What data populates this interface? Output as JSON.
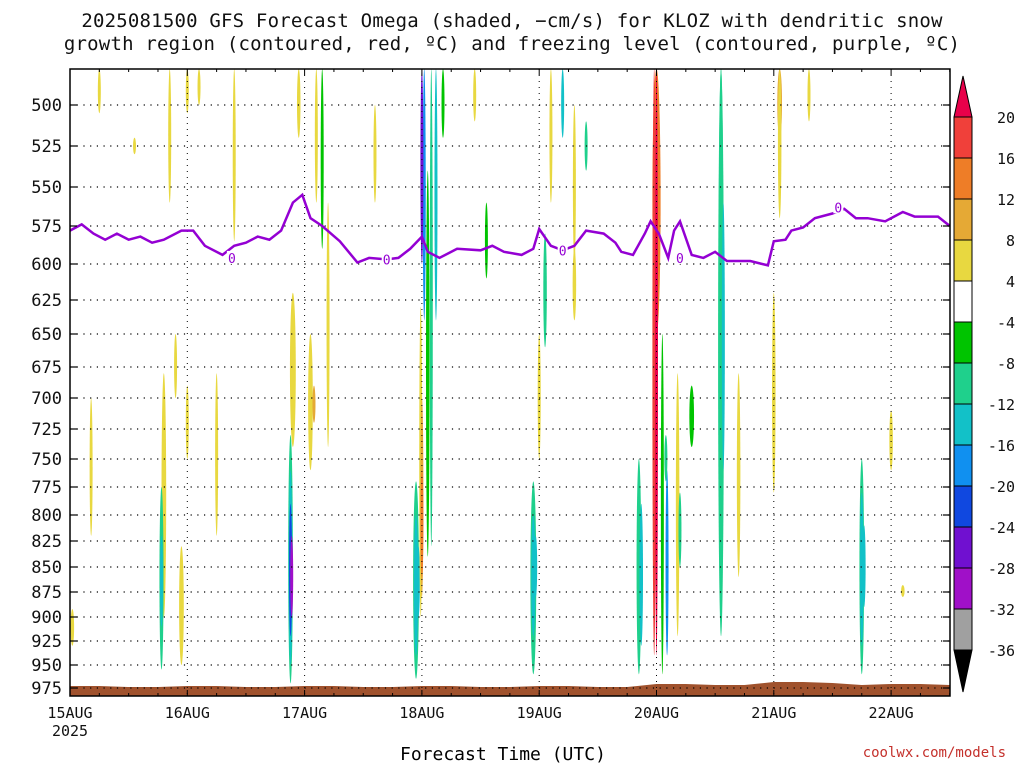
{
  "chart_data": {
    "type": "heatmap",
    "title_line1": "2025081500 GFS Forecast Omega (shaded, −cm/s) for KLOZ with dendritic snow",
    "title_line2": "growth region (contoured, red, ºC) and freezing level (contoured, purple, ºC)",
    "xlabel": "Forecast Time (UTC)",
    "credit": "coolwx.com/models",
    "x_ticks": [
      "15AUG",
      "16AUG",
      "17AUG",
      "18AUG",
      "19AUG",
      "20AUG",
      "21AUG",
      "22AUG"
    ],
    "x_year": "2025",
    "xlim_days": [
      0,
      7.5
    ],
    "y_axis_label": "",
    "y_ticks": [
      500,
      525,
      550,
      575,
      600,
      625,
      650,
      675,
      700,
      725,
      750,
      775,
      800,
      825,
      850,
      875,
      900,
      925,
      950,
      975
    ],
    "ylim_hpa": [
      475,
      985
    ],
    "grid": true,
    "colorbar": {
      "labels": [
        20,
        16,
        12,
        8,
        4,
        -4,
        -8,
        -12,
        -16,
        -20,
        -24,
        -28,
        -32,
        -36
      ],
      "colors": [
        "#e8004a",
        "#f0403a",
        "#ee7d27",
        "#e5a935",
        "#e8d840",
        "#ffffff",
        "#00c400",
        "#1fd08c",
        "#12c1c8",
        "#1090f0",
        "#1048e0",
        "#7010d0",
        "#a010c8",
        "#a0a0a0",
        "#000000"
      ]
    },
    "freezing_level": {
      "label": "0",
      "color": "#9400d3",
      "points": [
        [
          0,
          578
        ],
        [
          0.1,
          574
        ],
        [
          0.2,
          580
        ],
        [
          0.3,
          584
        ],
        [
          0.4,
          580
        ],
        [
          0.5,
          584
        ],
        [
          0.6,
          582
        ],
        [
          0.7,
          586
        ],
        [
          0.8,
          584
        ],
        [
          0.95,
          578
        ],
        [
          1.05,
          578
        ],
        [
          1.15,
          588
        ],
        [
          1.3,
          594
        ],
        [
          1.4,
          588
        ],
        [
          1.5,
          586
        ],
        [
          1.6,
          582
        ],
        [
          1.7,
          584
        ],
        [
          1.8,
          578
        ],
        [
          1.9,
          560
        ],
        [
          1.98,
          555
        ],
        [
          2.05,
          570
        ],
        [
          2.15,
          575
        ],
        [
          2.3,
          585
        ],
        [
          2.45,
          599
        ],
        [
          2.55,
          596
        ],
        [
          2.7,
          597
        ],
        [
          2.8,
          596
        ],
        [
          2.9,
          590
        ],
        [
          3.0,
          582
        ],
        [
          3.05,
          592
        ],
        [
          3.15,
          596
        ],
        [
          3.3,
          590
        ],
        [
          3.5,
          591
        ],
        [
          3.6,
          588
        ],
        [
          3.7,
          592
        ],
        [
          3.85,
          594
        ],
        [
          3.95,
          590
        ],
        [
          4.0,
          577
        ],
        [
          4.1,
          588
        ],
        [
          4.2,
          591
        ],
        [
          4.3,
          588
        ],
        [
          4.4,
          578
        ],
        [
          4.55,
          580
        ],
        [
          4.65,
          586
        ],
        [
          4.7,
          592
        ],
        [
          4.8,
          594
        ],
        [
          4.9,
          580
        ],
        [
          4.95,
          572
        ],
        [
          5.02,
          580
        ],
        [
          5.1,
          596
        ],
        [
          5.15,
          578
        ],
        [
          5.2,
          572
        ],
        [
          5.3,
          594
        ],
        [
          5.4,
          596
        ],
        [
          5.5,
          592
        ],
        [
          5.6,
          598
        ],
        [
          5.8,
          598
        ],
        [
          5.95,
          601
        ],
        [
          6.0,
          585
        ],
        [
          6.1,
          584
        ],
        [
          6.15,
          578
        ],
        [
          6.25,
          576
        ],
        [
          6.35,
          570
        ],
        [
          6.5,
          567
        ],
        [
          6.6,
          564
        ],
        [
          6.7,
          570
        ],
        [
          6.8,
          570
        ],
        [
          6.95,
          572
        ],
        [
          7.1,
          566
        ],
        [
          7.2,
          569
        ],
        [
          7.4,
          569
        ],
        [
          7.5,
          575
        ]
      ],
      "labels_at": [
        [
          1.38,
          596
        ],
        [
          2.7,
          597
        ],
        [
          4.2,
          591
        ],
        [
          5.2,
          596
        ],
        [
          6.55,
          563
        ]
      ]
    },
    "omega_features": [
      {
        "t": 0.02,
        "p1": 892,
        "p2": 930,
        "w": 0.03,
        "v": 5
      },
      {
        "t": 0.18,
        "p1": 700,
        "p2": 820,
        "w": 0.02,
        "v": 5
      },
      {
        "t": 0.25,
        "p1": 470,
        "p2": 505,
        "w": 0.01,
        "v": 5
      },
      {
        "t": 0.55,
        "p1": 520,
        "p2": 530,
        "w": 0.01,
        "v": 5
      },
      {
        "t": 0.85,
        "p1": 470,
        "p2": 560,
        "w": 0.02,
        "v": 5
      },
      {
        "t": 0.9,
        "p1": 650,
        "p2": 700,
        "w": 0.02,
        "v": 5
      },
      {
        "t": 1.0,
        "p1": 470,
        "p2": 505,
        "w": 0.02,
        "v": 5
      },
      {
        "t": 1.1,
        "p1": 470,
        "p2": 500,
        "w": 0.02,
        "v": 5
      },
      {
        "t": 1.4,
        "p1": 470,
        "p2": 585,
        "w": 0.02,
        "v": 5
      },
      {
        "t": 1.95,
        "p1": 470,
        "p2": 520,
        "w": 0.03,
        "v": 5
      },
      {
        "t": 2.1,
        "p1": 470,
        "p2": 560,
        "w": 0.02,
        "v": 6
      },
      {
        "t": 0.8,
        "p1": 680,
        "p2": 900,
        "w": 0.04,
        "v": 5
      },
      {
        "t": 0.78,
        "p1": 775,
        "p2": 955,
        "w": 0.035,
        "v": -9
      },
      {
        "t": 0.78,
        "p1": 820,
        "p2": 910,
        "w": 0.02,
        "v": -13
      },
      {
        "t": 0.95,
        "p1": 830,
        "p2": 950,
        "w": 0.04,
        "v": 6
      },
      {
        "t": 1.0,
        "p1": 690,
        "p2": 750,
        "w": 0.02,
        "v": 5
      },
      {
        "t": 1.25,
        "p1": 680,
        "p2": 820,
        "w": 0.02,
        "v": 5
      },
      {
        "t": 1.88,
        "p1": 730,
        "p2": 970,
        "w": 0.04,
        "v": -9
      },
      {
        "t": 1.88,
        "p1": 760,
        "p2": 950,
        "w": 0.03,
        "v": -13
      },
      {
        "t": 1.88,
        "p1": 790,
        "p2": 920,
        "w": 0.02,
        "v": -22
      },
      {
        "t": 1.89,
        "p1": 820,
        "p2": 900,
        "w": 0.015,
        "v": -29
      },
      {
        "t": 1.9,
        "p1": 620,
        "p2": 740,
        "w": 0.05,
        "v": 6
      },
      {
        "t": 2.05,
        "p1": 650,
        "p2": 760,
        "w": 0.04,
        "v": 6
      },
      {
        "t": 2.08,
        "p1": 690,
        "p2": 720,
        "w": 0.02,
        "v": 9
      },
      {
        "t": 2.15,
        "p1": 470,
        "p2": 590,
        "w": 0.015,
        "v": -6
      },
      {
        "t": 2.2,
        "p1": 560,
        "p2": 740,
        "w": 0.02,
        "v": 5
      },
      {
        "t": 2.6,
        "p1": 500,
        "p2": 560,
        "w": 0.02,
        "v": 5
      },
      {
        "t": 2.95,
        "p1": 770,
        "p2": 965,
        "w": 0.05,
        "v": -9
      },
      {
        "t": 2.95,
        "p1": 800,
        "p2": 940,
        "w": 0.035,
        "v": -12
      },
      {
        "t": 2.97,
        "p1": 830,
        "p2": 900,
        "w": 0.02,
        "v": -15
      },
      {
        "t": 2.99,
        "p1": 630,
        "p2": 900,
        "w": 0.025,
        "v": 6
      },
      {
        "t": 3.0,
        "p1": 700,
        "p2": 880,
        "w": 0.02,
        "v": 10
      },
      {
        "t": 3.0,
        "p1": 760,
        "p2": 860,
        "w": 0.015,
        "v": 14
      },
      {
        "t": 3.02,
        "p1": 470,
        "p2": 640,
        "w": 0.02,
        "v": -19
      },
      {
        "t": 3.0,
        "p1": 470,
        "p2": 600,
        "w": 0.01,
        "v": -25
      },
      {
        "t": 3.05,
        "p1": 540,
        "p2": 840,
        "w": 0.03,
        "v": -6
      },
      {
        "t": 3.08,
        "p1": 470,
        "p2": 830,
        "w": 0.02,
        "v": -10
      },
      {
        "t": 3.12,
        "p1": 470,
        "p2": 640,
        "w": 0.02,
        "v": -15
      },
      {
        "t": 3.18,
        "p1": 470,
        "p2": 520,
        "w": 0.02,
        "v": -7
      },
      {
        "t": 3.55,
        "p1": 560,
        "p2": 610,
        "w": 0.015,
        "v": -6
      },
      {
        "t": 3.45,
        "p1": 470,
        "p2": 510,
        "w": 0.02,
        "v": 5
      },
      {
        "t": 3.95,
        "p1": 770,
        "p2": 960,
        "w": 0.05,
        "v": -9
      },
      {
        "t": 3.95,
        "p1": 800,
        "p2": 920,
        "w": 0.035,
        "v": -12
      },
      {
        "t": 3.97,
        "p1": 820,
        "p2": 880,
        "w": 0.02,
        "v": -15
      },
      {
        "t": 4.0,
        "p1": 650,
        "p2": 750,
        "w": 0.02,
        "v": 5
      },
      {
        "t": 4.05,
        "p1": 580,
        "p2": 660,
        "w": 0.03,
        "v": -8
      },
      {
        "t": 4.1,
        "p1": 470,
        "p2": 560,
        "w": 0.02,
        "v": 6
      },
      {
        "t": 4.2,
        "p1": 470,
        "p2": 520,
        "w": 0.02,
        "v": -12
      },
      {
        "t": 4.3,
        "p1": 500,
        "p2": 600,
        "w": 0.02,
        "v": 6
      },
      {
        "t": 4.3,
        "p1": 590,
        "p2": 640,
        "w": 0.03,
        "v": 6
      },
      {
        "t": 4.4,
        "p1": 510,
        "p2": 540,
        "w": 0.015,
        "v": -8
      },
      {
        "t": 4.85,
        "p1": 750,
        "p2": 960,
        "w": 0.04,
        "v": -9
      },
      {
        "t": 4.87,
        "p1": 790,
        "p2": 930,
        "w": 0.03,
        "v": -12
      },
      {
        "t": 5.0,
        "p1": 470,
        "p2": 650,
        "w": 0.07,
        "v": 12
      },
      {
        "t": 4.98,
        "p1": 470,
        "p2": 940,
        "w": 0.03,
        "v": 16
      },
      {
        "t": 5.0,
        "p1": 470,
        "p2": 940,
        "w": 0.015,
        "v": 20
      },
      {
        "t": 5.05,
        "p1": 650,
        "p2": 960,
        "w": 0.02,
        "v": -6
      },
      {
        "t": 5.09,
        "p1": 760,
        "p2": 940,
        "w": 0.02,
        "v": -17
      },
      {
        "t": 5.08,
        "p1": 730,
        "p2": 770,
        "w": 0.015,
        "v": -9
      },
      {
        "t": 5.18,
        "p1": 680,
        "p2": 920,
        "w": 0.03,
        "v": 7
      },
      {
        "t": 5.2,
        "p1": 780,
        "p2": 850,
        "w": 0.02,
        "v": -8
      },
      {
        "t": 5.3,
        "p1": 690,
        "p2": 740,
        "w": 0.04,
        "v": -6
      },
      {
        "t": 5.55,
        "p1": 470,
        "p2": 920,
        "w": 0.05,
        "v": -8
      },
      {
        "t": 5.55,
        "p1": 470,
        "p2": 780,
        "w": 0.04,
        "v": -11
      },
      {
        "t": 5.57,
        "p1": 560,
        "p2": 760,
        "w": 0.025,
        "v": -15
      },
      {
        "t": 5.7,
        "p1": 680,
        "p2": 860,
        "w": 0.03,
        "v": 6
      },
      {
        "t": 6.05,
        "p1": 470,
        "p2": 520,
        "w": 0.04,
        "v": 9
      },
      {
        "t": 6.05,
        "p1": 470,
        "p2": 570,
        "w": 0.03,
        "v": 5
      },
      {
        "t": 6.0,
        "p1": 620,
        "p2": 780,
        "w": 0.03,
        "v": 5
      },
      {
        "t": 6.3,
        "p1": 470,
        "p2": 510,
        "w": 0.02,
        "v": 5
      },
      {
        "t": 6.75,
        "p1": 750,
        "p2": 960,
        "w": 0.04,
        "v": -9
      },
      {
        "t": 6.75,
        "p1": 780,
        "p2": 930,
        "w": 0.03,
        "v": -12
      },
      {
        "t": 6.77,
        "p1": 810,
        "p2": 890,
        "w": 0.015,
        "v": -15
      },
      {
        "t": 7.0,
        "p1": 710,
        "p2": 760,
        "w": 0.03,
        "v": 5
      },
      {
        "t": 7.1,
        "p1": 868,
        "p2": 880,
        "w": 0.03,
        "v": 5
      }
    ],
    "surface": {
      "color": "#a0522d"
    }
  }
}
